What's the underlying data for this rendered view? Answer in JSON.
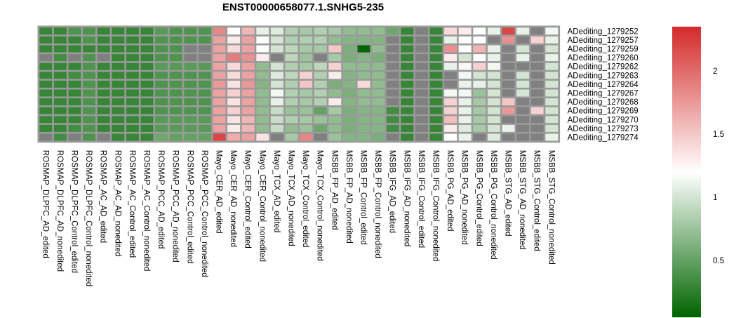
{
  "chart_data": {
    "type": "heatmap",
    "title": "ENST00000658077.1.SNHG5-235",
    "columns": [
      "ROSMAP_DLPFC_AD_edited",
      "ROSMAP_DLPFC_AD_nonedited",
      "ROSMAP_DLPFC_Control_edited",
      "ROSMAP_DLPFC_Control_nonedited",
      "ROSMAP_AC_AD_edited",
      "ROSMAP_AC_AD_nonedited",
      "ROSMAP_AC_Control_edited",
      "ROSMAP_AC_Control_nonedited",
      "ROSMAP_PCC_AD_edited",
      "ROSMAP_PCC_AD_nonedited",
      "ROSMAP_PCC_Control_edited",
      "ROSMAP_PCC_Control_nonedited",
      "Mayo_CER_AD_edited",
      "Mayo_CER_AD_nonedited",
      "Mayo_CER_Control_edited",
      "Mayo_CER_Control_nonedited",
      "Mayo_TCX_AD_edited",
      "Mayo_TCX_AD_nonedited",
      "Mayo_TCX_Control_edited",
      "Mayo_TCX_Control_nonedited",
      "MSBB_FP_AD_edited",
      "MSBB_FP_AD_nonedited",
      "MSBB_FP_Control_edited",
      "MSBB_FP_Control_nonedited",
      "MSBB_IFG_AD_edited",
      "MSBB_IFG_AD_nonedited",
      "MSBB_IFG_Control_edited",
      "MSBB_IFG_Control_nonedited",
      "MSBB_PG_AD_edited",
      "MSBB_PG_AD_nonedited",
      "MSBB_PG_Control_edited",
      "MSBB_PG_Control_nonedited",
      "MSBB_STG_AD_edited",
      "MSBB_STG_AD_nonedited",
      "MSBB_STG_Control_edited",
      "MSBB_STG_Control_nonedited"
    ],
    "rows": [
      "ADediting_1279252",
      "ADediting_1279257",
      "ADediting_1279259",
      "ADediting_1279260",
      "ADediting_1279262",
      "ADediting_1279263",
      "ADediting_1279264",
      "ADediting_1279267",
      "ADediting_1279268",
      "ADediting_1279269",
      "ADediting_1279270",
      "ADediting_1279273",
      "ADediting_1279274"
    ],
    "values": [
      [
        0.3,
        0.3,
        0.4,
        0.4,
        0.3,
        0.3,
        0.3,
        0.3,
        0.45,
        0.4,
        0.4,
        0.4,
        1.85,
        1.2,
        1.6,
        1.1,
        1.05,
        0.85,
        0.8,
        0.85,
        0.8,
        0.7,
        0.7,
        0.7,
        0.55,
        0.3,
        null,
        0.3,
        1.4,
        1.3,
        1.2,
        1.1,
        2.2,
        1.1,
        null,
        1.15
      ],
      [
        0.3,
        0.3,
        0.3,
        0.4,
        0.3,
        0.3,
        0.3,
        0.3,
        0.4,
        0.4,
        0.4,
        0.4,
        1.7,
        1.3,
        1.7,
        1.2,
        1.0,
        0.85,
        0.85,
        0.85,
        0.7,
        0.65,
        0.65,
        0.65,
        null,
        0.3,
        null,
        0.3,
        1.1,
        1.2,
        1.2,
        null,
        1.8,
        null,
        1.45,
        1.1
      ],
      [
        0.3,
        0.3,
        0.3,
        0.3,
        0.3,
        0.3,
        0.3,
        0.3,
        0.4,
        0.4,
        null,
        null,
        1.7,
        1.4,
        1.7,
        1.2,
        1.0,
        0.9,
        0.8,
        0.8,
        1.5,
        0.6,
        0.05,
        0.7,
        null,
        0.3,
        null,
        0.3,
        1.8,
        1.2,
        1.6,
        1.1,
        null,
        1.0,
        null,
        1.0
      ],
      [
        null,
        0.35,
        null,
        0.4,
        null,
        0.3,
        0.3,
        0.3,
        0.4,
        0.4,
        null,
        null,
        1.7,
        1.9,
        1.8,
        1.3,
        null,
        0.9,
        0.75,
        null,
        0.8,
        0.6,
        0.65,
        0.6,
        null,
        0.3,
        null,
        0.3,
        1.3,
        1.0,
        1.2,
        1.1,
        null,
        1.1,
        null,
        1.1
      ],
      [
        0.3,
        0.3,
        0.3,
        0.4,
        0.3,
        0.3,
        0.3,
        0.3,
        0.45,
        0.45,
        0.45,
        0.45,
        1.7,
        1.4,
        1.7,
        0.7,
        1.0,
        0.85,
        0.8,
        0.9,
        1.45,
        0.7,
        0.7,
        0.7,
        null,
        0.3,
        null,
        0.3,
        1.1,
        1.25,
        1.45,
        1.15,
        null,
        null,
        null,
        1.0
      ],
      [
        0.3,
        0.3,
        0.35,
        0.4,
        0.3,
        0.3,
        0.3,
        0.3,
        0.4,
        0.4,
        0.4,
        0.4,
        1.7,
        1.4,
        1.7,
        0.7,
        1.05,
        0.9,
        1.45,
        0.85,
        1.3,
        0.65,
        0.7,
        0.7,
        null,
        0.3,
        null,
        0.3,
        null,
        1.15,
        1.0,
        1.0,
        null,
        1.0,
        null,
        1.0
      ],
      [
        0.3,
        0.3,
        0.3,
        0.4,
        0.3,
        0.3,
        0.3,
        0.3,
        0.4,
        0.4,
        0.4,
        0.4,
        1.75,
        1.35,
        1.75,
        0.65,
        1.0,
        0.85,
        1.5,
        0.85,
        0.6,
        0.65,
        1.4,
        0.7,
        null,
        0.3,
        null,
        0.3,
        null,
        1.1,
        1.1,
        1.0,
        null,
        1.0,
        null,
        1.0
      ],
      [
        0.3,
        0.3,
        0.3,
        0.4,
        0.3,
        0.3,
        0.3,
        0.3,
        0.4,
        0.4,
        0.4,
        0.4,
        1.7,
        1.45,
        1.7,
        0.7,
        1.15,
        0.85,
        0.8,
        0.85,
        0.7,
        0.6,
        0.7,
        0.7,
        null,
        0.3,
        null,
        0.3,
        1.15,
        1.15,
        0.75,
        1.0,
        null,
        1.0,
        null,
        1.0
      ],
      [
        0.3,
        0.3,
        0.3,
        0.4,
        0.3,
        0.3,
        0.3,
        0.3,
        0.4,
        0.4,
        0.4,
        0.4,
        1.7,
        1.35,
        1.7,
        0.7,
        1.1,
        0.85,
        0.8,
        0.85,
        1.3,
        0.65,
        0.7,
        0.7,
        null,
        0.3,
        null,
        0.3,
        1.45,
        1.1,
        0.8,
        1.0,
        1.5,
        null,
        null,
        1.0
      ],
      [
        0.3,
        0.3,
        0.3,
        0.4,
        0.3,
        0.3,
        0.3,
        0.3,
        0.4,
        0.4,
        0.4,
        0.4,
        1.7,
        1.45,
        1.7,
        0.7,
        0.95,
        0.75,
        0.75,
        0.5,
        0.8,
        0.6,
        0.65,
        0.65,
        0.35,
        0.3,
        null,
        0.3,
        1.45,
        1.1,
        0.8,
        1.0,
        1.75,
        null,
        1.45,
        1.0
      ],
      [
        0.3,
        0.3,
        0.3,
        0.4,
        0.3,
        0.3,
        0.3,
        0.3,
        0.45,
        0.45,
        0.45,
        0.45,
        1.7,
        1.35,
        1.6,
        0.7,
        0.95,
        0.85,
        0.8,
        0.75,
        0.7,
        0.6,
        0.65,
        0.65,
        0.35,
        0.3,
        null,
        0.3,
        1.55,
        1.1,
        0.8,
        1.0,
        null,
        null,
        null,
        1.0
      ],
      [
        0.3,
        0.3,
        0.35,
        0.4,
        0.3,
        0.3,
        0.3,
        0.3,
        0.45,
        0.45,
        0.45,
        0.45,
        1.7,
        1.3,
        1.6,
        0.7,
        0.95,
        0.7,
        0.75,
        0.55,
        0.7,
        0.6,
        0.65,
        0.65,
        0.35,
        0.3,
        null,
        0.3,
        1.3,
        1.05,
        0.8,
        1.0,
        1.1,
        null,
        null,
        1.0
      ],
      [
        null,
        0.35,
        null,
        0.4,
        null,
        0.3,
        0.3,
        0.3,
        0.55,
        0.5,
        0.5,
        0.5,
        2.2,
        1.65,
        1.7,
        1.35,
        null,
        0.8,
        1.85,
        null,
        0.75,
        0.65,
        0.65,
        0.6,
        null,
        0.3,
        null,
        0.3,
        1.2,
        1.1,
        null,
        1.05,
        null,
        null,
        null,
        1.1
      ]
    ],
    "missing_color": "#808080",
    "legend": {
      "ticks": [
        {
          "value": 0.5,
          "label": "0.5"
        },
        {
          "value": 1,
          "label": "1"
        },
        {
          "value": 1.5,
          "label": "1.5"
        },
        {
          "value": 2,
          "label": "2"
        }
      ],
      "range": [
        0.05,
        2.35
      ],
      "placement": "right"
    },
    "colors": {
      "low": "#006400",
      "mid": "#ffffff",
      "high": "#d42a2a",
      "midpoint": 1.2
    }
  }
}
